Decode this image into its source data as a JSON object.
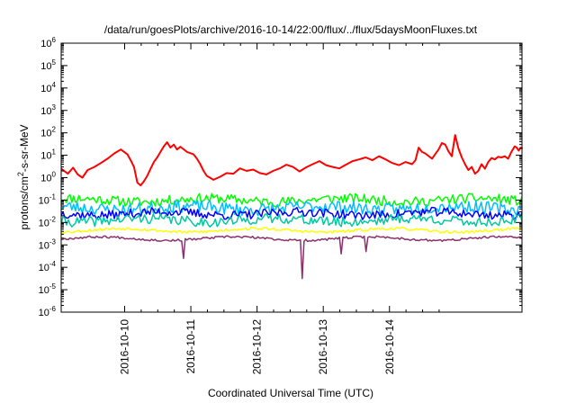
{
  "chart_data": {
    "type": "line",
    "title": "/data/run/goesPlots/archive/2016-10-14/22:00/flux/../flux/5daysMoonFluxes.txt",
    "xlabel": "Coordinated Universal Time (UTC)",
    "ylabel": {
      "pre": "protons/cm",
      "sup": "2",
      "post": "-s-sr-MeV"
    },
    "y_scale": "log",
    "ylim_exp": [
      -6,
      6
    ],
    "xlim_days": [
      "2016-10-09 01:00",
      "2016-10-15 00:00"
    ],
    "x_ticks": [
      "2016-10-10",
      "2016-10-11",
      "2016-10-12",
      "2016-10-13",
      "2016-10-14"
    ],
    "grid": false,
    "legend": "none",
    "series": [
      {
        "color": "#ff0000",
        "width": 2,
        "points": [
          [
            0.0,
            2.5
          ],
          [
            0.1,
            1.5
          ],
          [
            0.18,
            2.8
          ],
          [
            0.25,
            1.4
          ],
          [
            0.32,
            1.0
          ],
          [
            0.4,
            2.2
          ],
          [
            0.5,
            3.0
          ],
          [
            0.6,
            4.5
          ],
          [
            0.7,
            7.0
          ],
          [
            0.8,
            12
          ],
          [
            0.9,
            18
          ],
          [
            1.0,
            11
          ],
          [
            1.05,
            6.0
          ],
          [
            1.1,
            3.0
          ],
          [
            1.15,
            0.6
          ],
          [
            1.2,
            0.45
          ],
          [
            1.25,
            0.7
          ],
          [
            1.3,
            1.2
          ],
          [
            1.35,
            2.5
          ],
          [
            1.4,
            5.0
          ],
          [
            1.45,
            8.0
          ],
          [
            1.5,
            14
          ],
          [
            1.55,
            25
          ],
          [
            1.6,
            38
          ],
          [
            1.65,
            22
          ],
          [
            1.7,
            30
          ],
          [
            1.75,
            18
          ],
          [
            1.8,
            24
          ],
          [
            1.9,
            14
          ],
          [
            2.0,
            11
          ],
          [
            2.05,
            7
          ],
          [
            2.1,
            4
          ],
          [
            2.15,
            2
          ],
          [
            2.2,
            1.2
          ],
          [
            2.3,
            0.8
          ],
          [
            2.4,
            1.1
          ],
          [
            2.5,
            1.6
          ],
          [
            2.6,
            1.5
          ],
          [
            2.7,
            2.6
          ],
          [
            2.8,
            2.0
          ],
          [
            2.9,
            2.3
          ],
          [
            3.0,
            1.6
          ],
          [
            3.1,
            1.4
          ],
          [
            3.2,
            2.0
          ],
          [
            3.3,
            2.6
          ],
          [
            3.4,
            3.8
          ],
          [
            3.5,
            3.0
          ],
          [
            3.6,
            1.9
          ],
          [
            3.7,
            2.9
          ],
          [
            3.8,
            4.0
          ],
          [
            3.9,
            5.5
          ],
          [
            4.0,
            3.6
          ],
          [
            4.1,
            3.0
          ],
          [
            4.2,
            2.6
          ],
          [
            4.3,
            3.8
          ],
          [
            4.4,
            5.5
          ],
          [
            4.5,
            6.5
          ],
          [
            4.6,
            8.0
          ],
          [
            4.7,
            6.0
          ],
          [
            4.8,
            9.0
          ],
          [
            4.9,
            6.5
          ],
          [
            5.0,
            4.5
          ],
          [
            5.1,
            3.6
          ],
          [
            5.2,
            5.0
          ],
          [
            5.3,
            4.0
          ],
          [
            5.35,
            6.0
          ],
          [
            5.4,
            22
          ],
          [
            5.45,
            14
          ],
          [
            5.5,
            12
          ],
          [
            5.6,
            7.0
          ],
          [
            5.7,
            18
          ],
          [
            5.75,
            35
          ],
          [
            5.8,
            30
          ],
          [
            5.85,
            15
          ],
          [
            5.9,
            9
          ],
          [
            5.95,
            80
          ],
          [
            6.0,
            20
          ],
          [
            6.05,
            8
          ],
          [
            6.1,
            4
          ],
          [
            6.15,
            2.2
          ],
          [
            6.2,
            3.0
          ],
          [
            6.25,
            1.5
          ],
          [
            6.3,
            2.0
          ],
          [
            6.35,
            4.0
          ],
          [
            6.4,
            2.5
          ],
          [
            6.45,
            5.0
          ],
          [
            6.5,
            7.5
          ],
          [
            6.55,
            6.5
          ],
          [
            6.6,
            8.5
          ],
          [
            6.65,
            8.0
          ],
          [
            6.7,
            9.0
          ],
          [
            6.75,
            7.0
          ],
          [
            6.8,
            14
          ],
          [
            6.85,
            25
          ],
          [
            6.88,
            22
          ],
          [
            6.91,
            16
          ],
          [
            6.94,
            22
          ],
          [
            6.97,
            20
          ]
        ]
      },
      {
        "color": "#00ff00",
        "width": 1.5,
        "base_log": -1.0,
        "amp": 0.22,
        "seed": 11
      },
      {
        "color": "#00bfff",
        "width": 1.5,
        "base_log": -1.35,
        "amp": 0.28,
        "seed": 23
      },
      {
        "color": "#0000ff",
        "width": 1.5,
        "base_log": -1.6,
        "amp": 0.2,
        "seed": 37
      },
      {
        "color": "#00c8a0",
        "width": 1.5,
        "base_log": -1.9,
        "amp": 0.22,
        "seed": 41
      },
      {
        "color": "#ffff00",
        "width": 1.5,
        "base_log": -2.35,
        "amp": 0.06,
        "seed": 53
      },
      {
        "color": "#8b2f6d",
        "width": 1.5,
        "base_log": -2.72,
        "amp": 0.05,
        "seed": 67,
        "dips": [
          [
            1.85,
            -3.6
          ],
          [
            3.63,
            -4.5
          ],
          [
            4.22,
            -3.4
          ],
          [
            4.6,
            -3.3
          ]
        ]
      }
    ]
  }
}
